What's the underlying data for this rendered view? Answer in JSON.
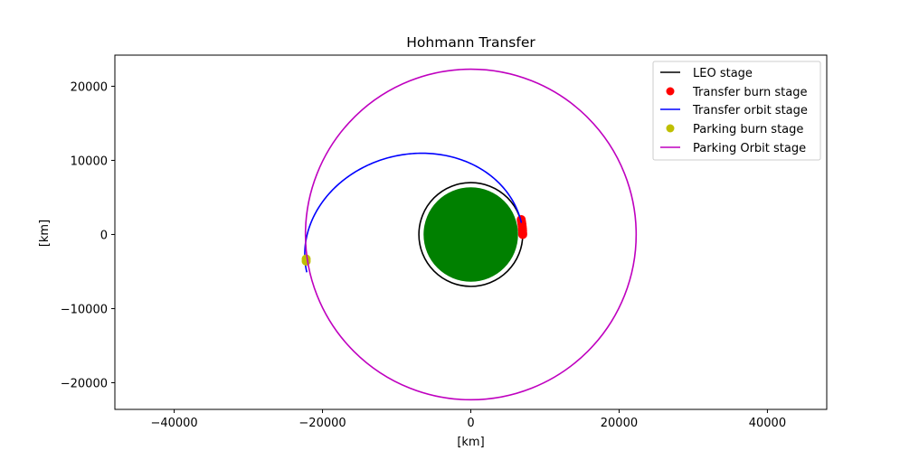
{
  "chart_data": {
    "type": "line",
    "title": "Hohmann Transfer",
    "xlabel": "[km]",
    "ylabel": "[km]",
    "xlim": [
      -48000,
      48000
    ],
    "ylim": [
      -23600,
      24200
    ],
    "xticks": [
      -40000,
      -20000,
      0,
      20000,
      40000
    ],
    "yticks": [
      -20000,
      -10000,
      0,
      10000,
      20000
    ],
    "xtick_labels": [
      "−40000",
      "−20000",
      "0",
      "20000",
      "40000"
    ],
    "ytick_labels": [
      "−20000",
      "−10000",
      "0",
      "10000",
      "20000"
    ],
    "legend_position": "top-right",
    "earth": {
      "center": [
        0,
        0
      ],
      "radius_km": 6371,
      "color": "#008000"
    },
    "series": [
      {
        "name": "LEO stage",
        "kind": "line",
        "color": "#000000",
        "shape": "circle",
        "center": [
          0,
          0
        ],
        "radius_km": 7000
      },
      {
        "name": "Transfer burn stage",
        "kind": "marker",
        "color": "#ff0000",
        "points": [
          [
            6800,
            2000
          ],
          [
            6850,
            1700
          ],
          [
            6900,
            1400
          ],
          [
            6930,
            1100
          ],
          [
            6960,
            800
          ],
          [
            6980,
            500
          ],
          [
            6990,
            200
          ],
          [
            7000,
            0
          ]
        ]
      },
      {
        "name": "Transfer orbit stage",
        "kind": "line",
        "color": "#0000ff",
        "shape": "half-ellipse",
        "periapsis_km": 7000,
        "apoapsis_km": 22700,
        "rotation_deg": 13
      },
      {
        "name": "Parking burn stage",
        "kind": "marker",
        "color": "#bfbf00",
        "points": [
          [
            -22200,
            -3300
          ],
          [
            -22200,
            -3600
          ]
        ]
      },
      {
        "name": "Parking Orbit stage",
        "kind": "line",
        "color": "#bf00bf",
        "shape": "circle",
        "center": [
          0,
          0
        ],
        "radius_km": 22300
      }
    ]
  }
}
